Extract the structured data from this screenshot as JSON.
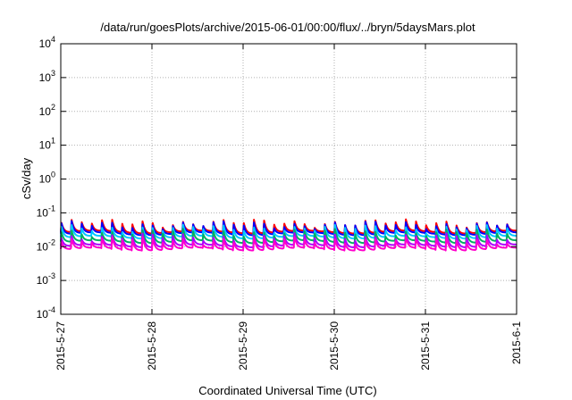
{
  "chart_data": {
    "type": "line",
    "title": "/data/run/goesPlots/archive/2015-06-01/00:00/flux/../bryn/5daysMars.plot",
    "xlabel": "Coordinated Universal Time (UTC)",
    "ylabel": "cSv/day",
    "y_scale": "log",
    "ylim": [
      0.0001,
      10000
    ],
    "xlim": [
      "2015-05-27",
      "2015-06-01"
    ],
    "grid": true,
    "legend": "none",
    "x_ticks": [
      "2015-5-27",
      "2015-5-28",
      "2015-5-29",
      "2015-5-30",
      "2015-5-31",
      "2015-6-1"
    ],
    "y_ticks": [
      {
        "base": "10",
        "exp": "-4"
      },
      {
        "base": "10",
        "exp": "-3"
      },
      {
        "base": "10",
        "exp": "-2"
      },
      {
        "base": "10",
        "exp": "-1"
      },
      {
        "base": "10",
        "exp": "0"
      },
      {
        "base": "10",
        "exp": "1"
      },
      {
        "base": "10",
        "exp": "2"
      },
      {
        "base": "10",
        "exp": "3"
      },
      {
        "base": "10",
        "exp": "4"
      }
    ],
    "series": [
      {
        "color": "#ff0000",
        "base": 0.027,
        "peak": 0.052
      },
      {
        "color": "#0000ff",
        "base": 0.024,
        "peak": 0.046
      },
      {
        "color": "#00c8ff",
        "base": 0.019,
        "peak": 0.036
      },
      {
        "color": "#00b060",
        "base": 0.014,
        "peak": 0.027
      },
      {
        "color": "#aa00ff",
        "base": 0.0105,
        "peak": 0.02
      },
      {
        "color": "#ff00cc",
        "base": 0.0085,
        "peak": 0.016
      }
    ],
    "pulses_per_day": 9
  }
}
